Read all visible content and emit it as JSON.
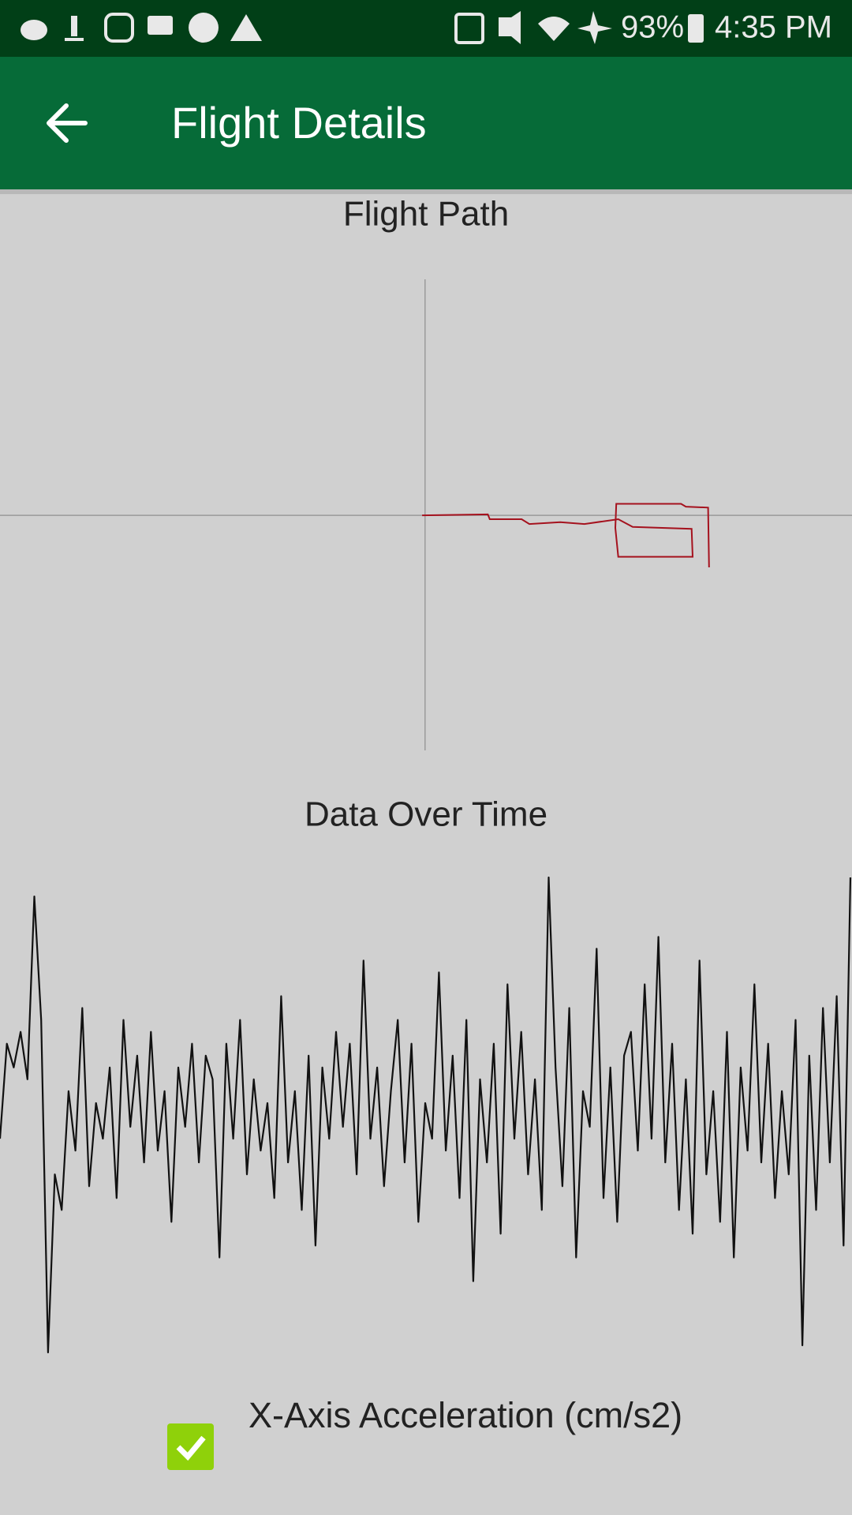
{
  "status_bar": {
    "battery": "93%",
    "time": "4:35 PM"
  },
  "app_bar": {
    "title": "Flight Details"
  },
  "flight_path": {
    "type": "line",
    "title": "Flight Path",
    "color": "#a5121e",
    "x": [
      -3,
      65,
      67,
      100,
      108,
      140,
      165,
      200,
      215,
      276,
      277,
      200,
      197,
      198,
      265,
      270,
      293,
      294
    ],
    "y": [
      0,
      1,
      -4,
      -4,
      -9,
      -7,
      -9,
      -4,
      -12,
      -14,
      -43,
      -43,
      -13,
      12,
      12,
      9,
      8,
      -54
    ],
    "xlim": [
      -440,
      442
    ],
    "ylim": [
      -244,
      245
    ]
  },
  "data_over_time": {
    "type": "line",
    "title": "Data Over Time",
    "color": "#111111",
    "values": [
      -10,
      30,
      20,
      35,
      15,
      92,
      40,
      -100,
      -25,
      -40,
      10,
      -15,
      45,
      -30,
      5,
      -10,
      20,
      -35,
      40,
      -5,
      25,
      -20,
      35,
      -15,
      10,
      -45,
      20,
      -5,
      30,
      -20,
      25,
      15,
      -60,
      30,
      -10,
      40,
      -25,
      15,
      -15,
      5,
      -35,
      50,
      -20,
      10,
      -40,
      25,
      -55,
      20,
      -10,
      35,
      -5,
      30,
      -25,
      65,
      -10,
      20,
      -30,
      10,
      40,
      -20,
      30,
      -45,
      5,
      -10,
      60,
      -15,
      25,
      -35,
      40,
      -70,
      15,
      -20,
      30,
      -50,
      55,
      -10,
      35,
      -25,
      15,
      -40,
      100,
      20,
      -30,
      45,
      -60,
      10,
      -5,
      70,
      -35,
      20,
      -45,
      25,
      35,
      -15,
      55,
      -10,
      75,
      -20,
      30,
      -40,
      15,
      -50,
      65,
      -25,
      10,
      -45,
      35,
      -60,
      20,
      -15,
      55,
      -20,
      30,
      -35,
      10,
      -25,
      40,
      -97,
      25,
      -40,
      45,
      -20,
      50,
      -55,
      100
    ],
    "ylim": [
      -100,
      100
    ]
  },
  "legend": {
    "label": "X-Axis Acceleration (cm/s2)",
    "checked": true,
    "color": "#8fd10a"
  }
}
